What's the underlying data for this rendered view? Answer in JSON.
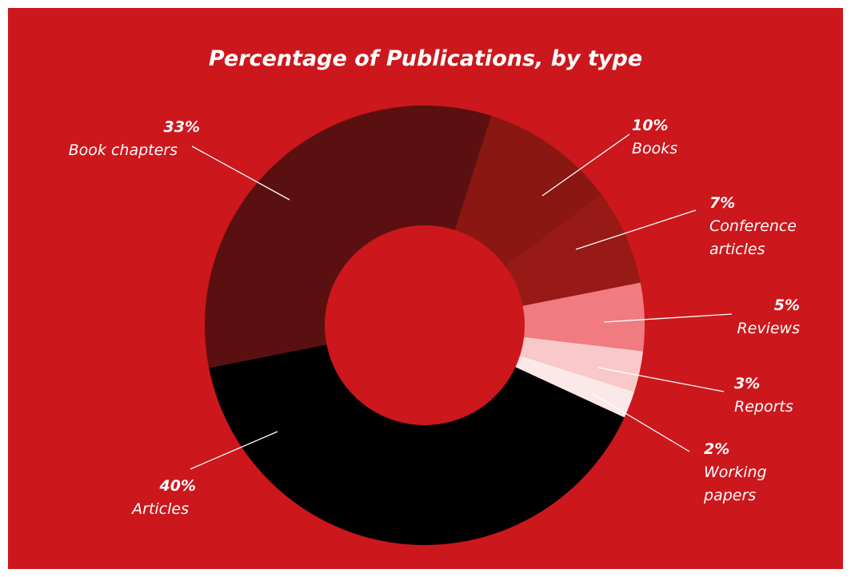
{
  "chart_data": {
    "type": "donut",
    "title": "Percentage of Publications, by type",
    "categories": [
      "Books",
      "Conference articles",
      "Reviews",
      "Reports",
      "Working papers",
      "Articles",
      "Book chapters"
    ],
    "values": [
      10,
      7,
      5,
      3,
      2,
      40,
      33
    ],
    "value_labels": [
      "10%",
      "7%",
      "5%",
      "3%",
      "2%",
      "40%",
      "33%"
    ],
    "colors": [
      "#8a1712",
      "#971a16",
      "#f07b80",
      "#f9c9ca",
      "#fbe8e8",
      "#000000",
      "#5a1010"
    ]
  }
}
